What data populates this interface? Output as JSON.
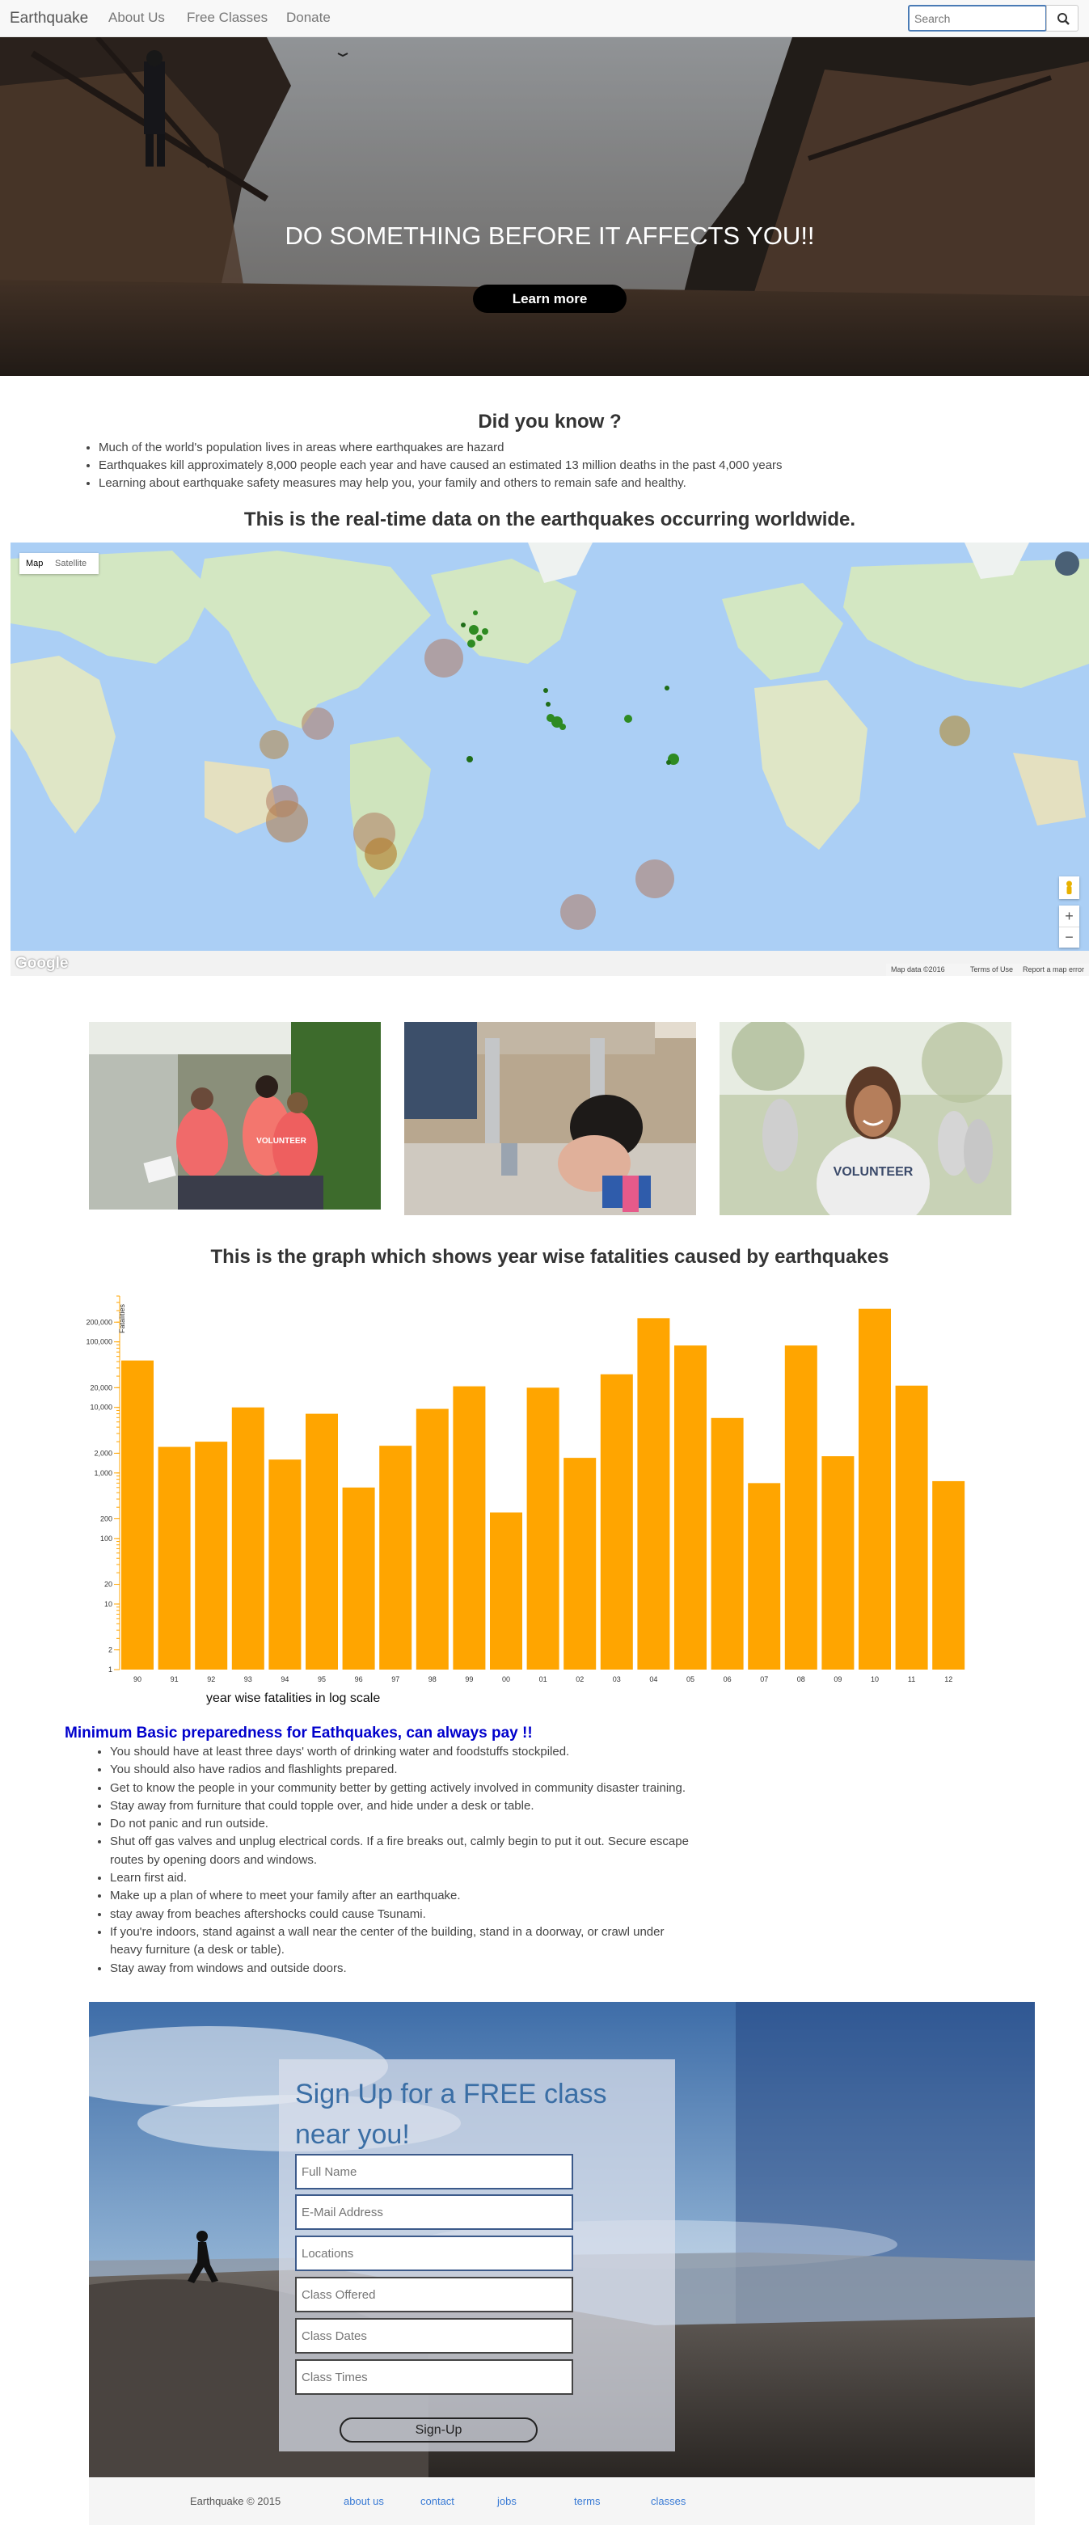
{
  "nav": {
    "brand": "Earthquake",
    "links": [
      "About Us",
      "Free Classes",
      "Donate"
    ],
    "search_placeholder": "Search",
    "search_icon": "search-icon"
  },
  "hero": {
    "headline": "DO SOMETHING BEFORE IT AFFECTS YOU!!",
    "button": "Learn more"
  },
  "facts": {
    "title": "Did you know ?",
    "items": [
      "Much of the world's population lives in areas where earthquakes are hazard",
      "Earthquakes kill approximately 8,000 people each year and have caused an estimated 13 million deaths in the past 4,000 years",
      "Learning about earthquake safety measures may help you, your family and others to remain safe and healthy."
    ]
  },
  "map": {
    "title": "This is the real-time data on the earthquakes occurring worldwide.",
    "map_tab": "Map",
    "satellite_tab": "Satellite",
    "attribution": "Google",
    "map_data": "Map data ©2016",
    "terms": "Terms of Use",
    "report": "Report a map error",
    "zoom_in": "+",
    "zoom_out": "−"
  },
  "photos": {
    "p1_vest": "VOLUNTEER",
    "p3_shirt": "VOLUNTEER"
  },
  "chart": {
    "title": "This is the graph which shows year wise fatalities caused by earthquakes"
  },
  "chart_data": {
    "type": "bar",
    "title": "",
    "xlabel": "year wise fatalities in log scale",
    "ylabel": "Fatalities",
    "y_scale": "log",
    "ylim": [
      1,
      500000
    ],
    "y_ticks": [
      1,
      2,
      10,
      20,
      100,
      200,
      1000,
      2000,
      10000,
      20000,
      100000,
      200000
    ],
    "y_tick_labels": [
      "1",
      "2",
      "10",
      "20",
      "100",
      "200",
      "1,000",
      "2,000",
      "10,000",
      "20,000",
      "100,000",
      "200,000"
    ],
    "categories": [
      "90",
      "91",
      "92",
      "93",
      "94",
      "95",
      "96",
      "97",
      "98",
      "99",
      "00",
      "01",
      "02",
      "03",
      "04",
      "05",
      "06",
      "07",
      "08",
      "09",
      "10",
      "11",
      "12"
    ],
    "values": [
      52000,
      2500,
      3000,
      10000,
      1600,
      8000,
      600,
      2600,
      9500,
      21000,
      250,
      20000,
      1700,
      32000,
      230000,
      88000,
      6900,
      700,
      88000,
      1800,
      320000,
      21500,
      750
    ],
    "grid": false,
    "color": "#ffa500"
  },
  "prep": {
    "title": "Minimum Basic preparedness for Eathquakes, can always pay !!",
    "items": [
      "You should have at least three days' worth of drinking water and foodstuffs stockpiled.",
      "You should also have radios and flashlights prepared.",
      "Get to know the people in your community better by getting actively involved in community disaster training.",
      "Stay away from furniture that could topple over, and hide under a desk or table.",
      "Do not panic and run outside.",
      "Shut off gas valves and unplug electrical cords. If a fire breaks out, calmly begin to put it out. Secure escape routes by opening doors and windows.",
      "Learn first aid.",
      "Make up a plan of where to meet your family after an earthquake.",
      "stay away from beaches aftershocks could cause Tsunami.",
      "If you're indoors, stand against a wall near the center of the building, stand in a doorway, or crawl under heavy furniture (a desk or table).",
      "Stay away from windows and outside doors."
    ]
  },
  "signup": {
    "title": "Sign Up for a FREE class near you!",
    "fields": [
      "Full Name",
      "E-Mail Address",
      "Locations",
      "Class Offered",
      "Class Dates",
      "Class Times"
    ],
    "button": "Sign-Up"
  },
  "footer": {
    "copyright": "Earthquake © 2015",
    "links": [
      "about us",
      "contact",
      "jobs",
      "terms",
      "classes"
    ]
  }
}
